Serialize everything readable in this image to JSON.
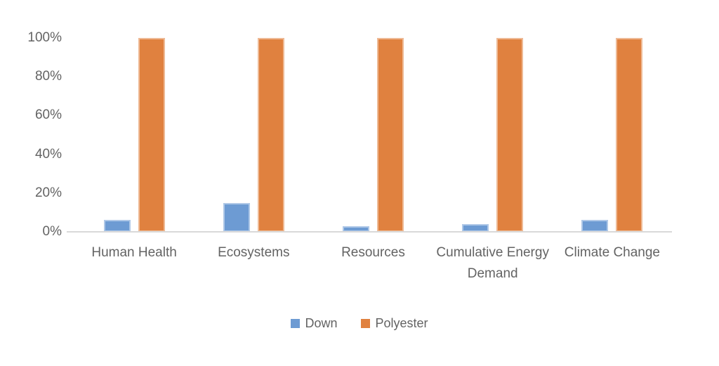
{
  "chart_data": {
    "type": "bar",
    "title": "",
    "categories": [
      "Human Health",
      "Ecosystems",
      "Resources",
      "Cumulative Energy Demand",
      "Climate Change"
    ],
    "series": [
      {
        "name": "Down",
        "color": "#6D9BD3",
        "values": [
          6,
          15,
          3,
          4,
          6
        ]
      },
      {
        "name": "Polyester",
        "color": "#E0813F",
        "values": [
          100,
          100,
          100,
          100,
          100
        ]
      }
    ],
    "yticks": [
      "0%",
      "20%",
      "40%",
      "60%",
      "80%",
      "100%"
    ],
    "ytick_values": [
      0,
      20,
      40,
      60,
      80,
      100
    ],
    "ylim": [
      0,
      100
    ],
    "grid": false,
    "legend_position": "bottom",
    "colors": {
      "down_blue": "#6D9BD3",
      "polyester_orange": "#E0813F",
      "axis_line": "#D9D9D9",
      "label_text": "#636363",
      "background": "#FFFFFF"
    }
  }
}
